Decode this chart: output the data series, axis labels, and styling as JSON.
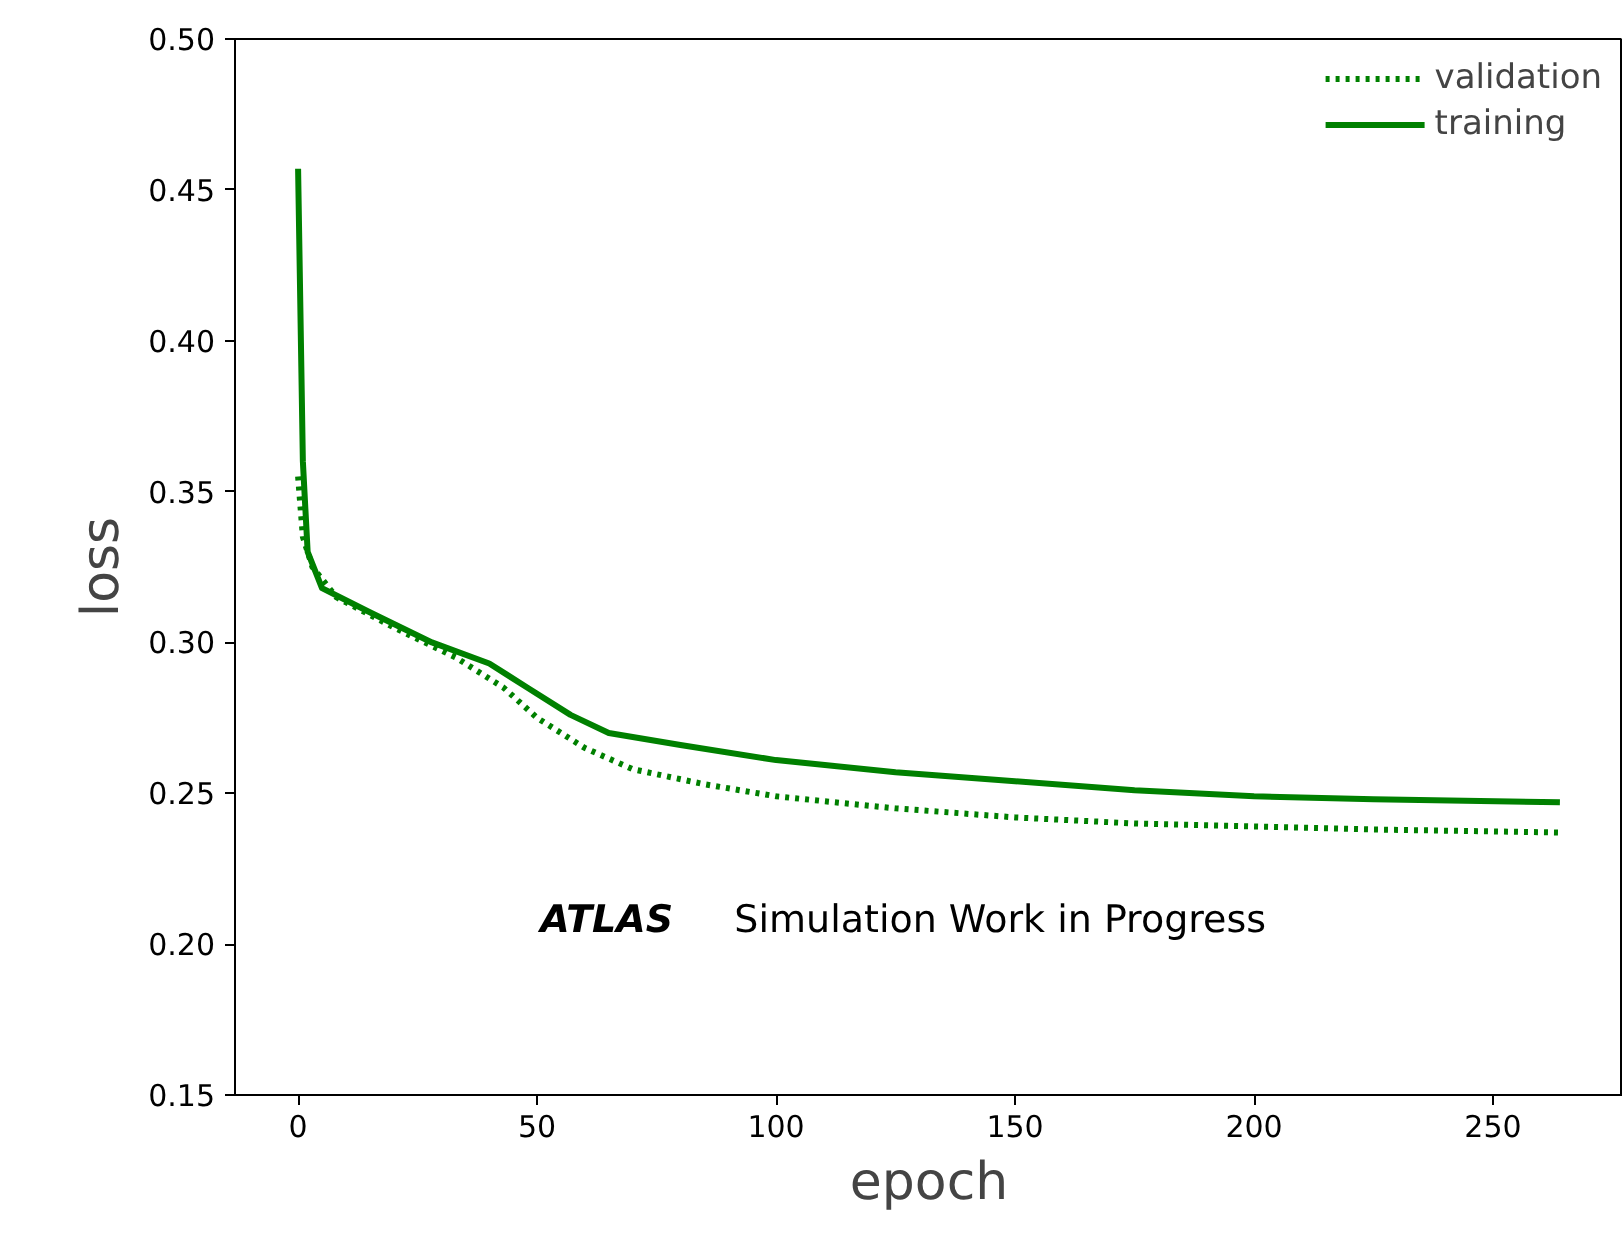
{
  "chart_data": {
    "type": "line",
    "xlabel": "epoch",
    "ylabel": "loss",
    "xlim": [
      -13.2,
      277.2
    ],
    "ylim": [
      0.15,
      0.5
    ],
    "xticks": [
      0,
      50,
      100,
      150,
      200,
      250
    ],
    "yticks": [
      {
        "value": 0.15,
        "label": "0.15"
      },
      {
        "value": 0.2,
        "label": "0.20"
      },
      {
        "value": 0.25,
        "label": "0.25"
      },
      {
        "value": 0.3,
        "label": "0.30"
      },
      {
        "value": 0.35,
        "label": "0.35"
      },
      {
        "value": 0.4,
        "label": "0.40"
      },
      {
        "value": 0.45,
        "label": "0.45"
      },
      {
        "value": 0.5,
        "label": "0.50"
      }
    ],
    "grid": false,
    "legend": "top right",
    "marker": "none",
    "annotations": [
      "ATLAS",
      "Simulation Work in Progress"
    ],
    "series": [
      {
        "name": "validation",
        "color": "#008000",
        "line_style": "dotted",
        "x": [
          0,
          1,
          3,
          8,
          20,
          33,
          43,
          50,
          60,
          70,
          85,
          100,
          125,
          150,
          175,
          200,
          225,
          264
        ],
        "values": [
          0.355,
          0.335,
          0.325,
          0.315,
          0.305,
          0.295,
          0.285,
          0.275,
          0.265,
          0.258,
          0.253,
          0.249,
          0.245,
          0.242,
          0.24,
          0.239,
          0.238,
          0.237
        ]
      },
      {
        "name": "training",
        "color": "#008000",
        "line_style": "solid",
        "x": [
          0,
          1,
          2,
          5,
          15,
          28,
          40,
          48,
          57,
          65,
          80,
          100,
          125,
          150,
          175,
          200,
          225,
          264
        ],
        "values": [
          0.457,
          0.36,
          0.33,
          0.318,
          0.31,
          0.3,
          0.293,
          0.285,
          0.276,
          0.27,
          0.266,
          0.261,
          0.257,
          0.254,
          0.251,
          0.249,
          0.248,
          0.247
        ]
      }
    ]
  }
}
